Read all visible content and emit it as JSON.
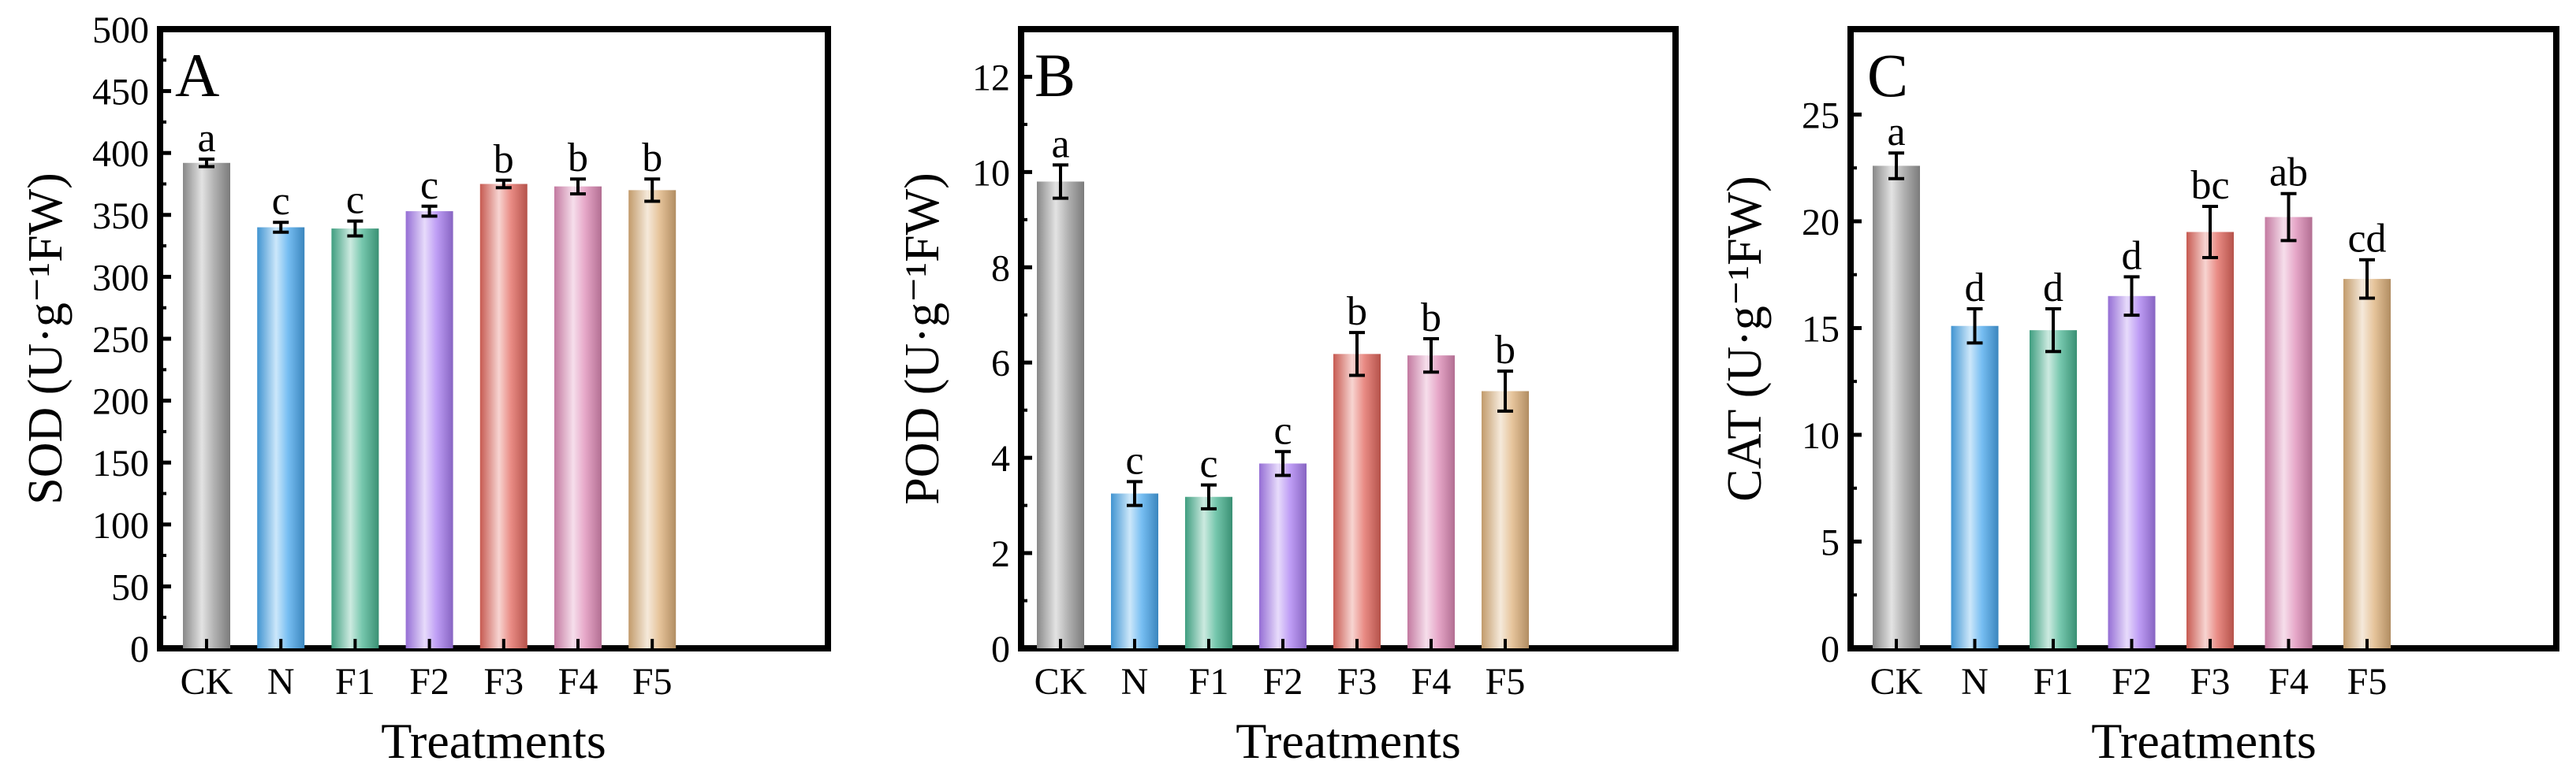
{
  "chart_data": [
    {
      "type": "bar",
      "panel_label": "A",
      "title": "",
      "xlabel": "Treatments",
      "ylabel": "SOD (U·g⁻¹FW)",
      "ylim": [
        0,
        500
      ],
      "yticks": [
        0,
        50,
        100,
        150,
        200,
        250,
        300,
        350,
        400,
        450,
        500
      ],
      "categories": [
        "CK",
        "N",
        "F1",
        "F2",
        "F3",
        "F4",
        "F5"
      ],
      "values": [
        392,
        340,
        339,
        353,
        375,
        373,
        370
      ],
      "errors": [
        3,
        4,
        6,
        4,
        3,
        6,
        9
      ],
      "significance": [
        "a",
        "c",
        "c",
        "c",
        "b",
        "b",
        "b"
      ]
    },
    {
      "type": "bar",
      "panel_label": "B",
      "title": "",
      "xlabel": "Treatments",
      "ylabel": "POD (U·g⁻¹FW)",
      "ylim": [
        0,
        13
      ],
      "yticks": [
        0,
        2,
        4,
        6,
        8,
        10,
        12
      ],
      "categories": [
        "CK",
        "N",
        "F1",
        "F2",
        "F3",
        "F4",
        "F5"
      ],
      "values": [
        9.8,
        3.25,
        3.18,
        3.88,
        6.18,
        6.15,
        5.4
      ],
      "errors": [
        0.35,
        0.25,
        0.25,
        0.25,
        0.45,
        0.35,
        0.42
      ],
      "significance": [
        "a",
        "c",
        "c",
        "c",
        "b",
        "b",
        "b"
      ]
    },
    {
      "type": "bar",
      "panel_label": "C",
      "title": "",
      "xlabel": "Treatments",
      "ylabel": "CAT (U·g⁻¹FW)",
      "ylim": [
        0,
        29
      ],
      "yticks": [
        0,
        5,
        10,
        15,
        20,
        25
      ],
      "categories": [
        "CK",
        "N",
        "F1",
        "F2",
        "F3",
        "F4",
        "F5"
      ],
      "values": [
        22.6,
        15.1,
        14.9,
        16.5,
        19.5,
        20.2,
        17.3
      ],
      "errors": [
        0.6,
        0.8,
        1.0,
        0.9,
        1.2,
        1.1,
        0.9
      ],
      "significance": [
        "a",
        "d",
        "d",
        "d",
        "bc",
        "ab",
        "cd"
      ]
    }
  ],
  "bar_colors": [
    "#9a9a9a",
    "#4aa8ee",
    "#48b491",
    "#a97df2",
    "#e2665c",
    "#de89b6",
    "#ddb07a"
  ]
}
